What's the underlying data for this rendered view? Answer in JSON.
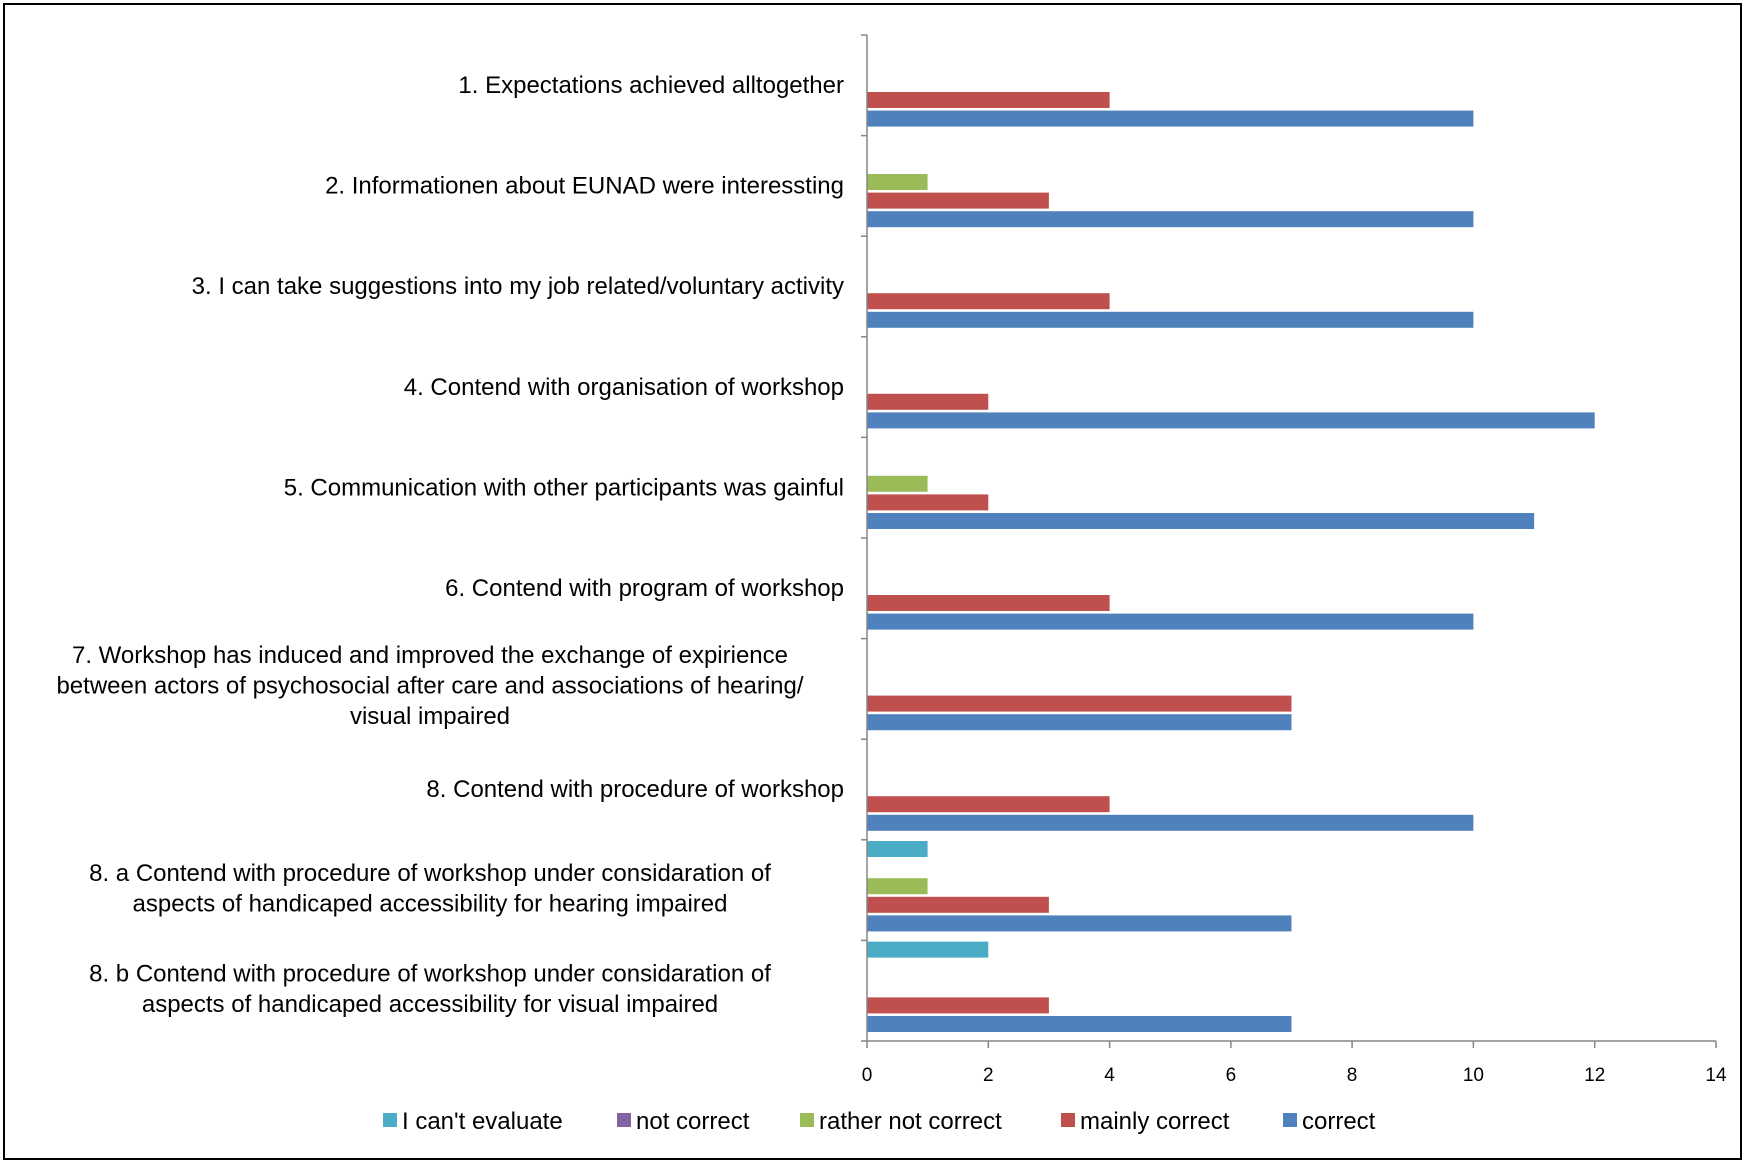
{
  "chart_data": {
    "type": "bar",
    "orientation": "horizontal",
    "categories": [
      [
        "1. Expectations achieved alltogether"
      ],
      [
        "2. Informationen about EUNAD were interessting"
      ],
      [
        "3. I can take suggestions into my job related/voluntary activity"
      ],
      [
        "4. Contend with organisation of workshop"
      ],
      [
        "5. Communication with other participants was gainful"
      ],
      [
        "6. Contend with program of workshop"
      ],
      [
        "7. Workshop has induced and improved the exchange of expirience",
        "between actors of psychosocial after care and associations of hearing/",
        "visual impaired"
      ],
      [
        "8. Contend with procedure of workshop"
      ],
      [
        "8. a Contend with procedure of workshop under considaration of",
        "aspects of handicaped accessibility for hearing impaired"
      ],
      [
        "8. b Contend with procedure of workshop under considaration of",
        "aspects of handicaped accessibility for visual impaired"
      ]
    ],
    "series": [
      {
        "name": "I can't evaluate",
        "color": "#4BACC6",
        "values": [
          0,
          0,
          0,
          0,
          0,
          0,
          0,
          0,
          1,
          2
        ]
      },
      {
        "name": "not correct",
        "color": "#8064A2",
        "values": [
          0,
          0,
          0,
          0,
          0,
          0,
          0,
          0,
          0,
          0
        ]
      },
      {
        "name": "rather not correct",
        "color": "#9BBB59",
        "values": [
          0,
          1,
          0,
          0,
          1,
          0,
          0,
          0,
          1,
          0
        ]
      },
      {
        "name": "mainly correct",
        "color": "#C0504D",
        "values": [
          4,
          3,
          4,
          2,
          2,
          4,
          7,
          4,
          3,
          3
        ]
      },
      {
        "name": "correct",
        "color": "#4F81BD",
        "values": [
          10,
          10,
          10,
          12,
          11,
          10,
          7,
          10,
          7,
          7
        ]
      }
    ],
    "xlim": [
      0,
      14
    ],
    "xticks": [
      0,
      2,
      4,
      6,
      8,
      10,
      12,
      14
    ],
    "grid": false,
    "legend_position": "bottom"
  }
}
